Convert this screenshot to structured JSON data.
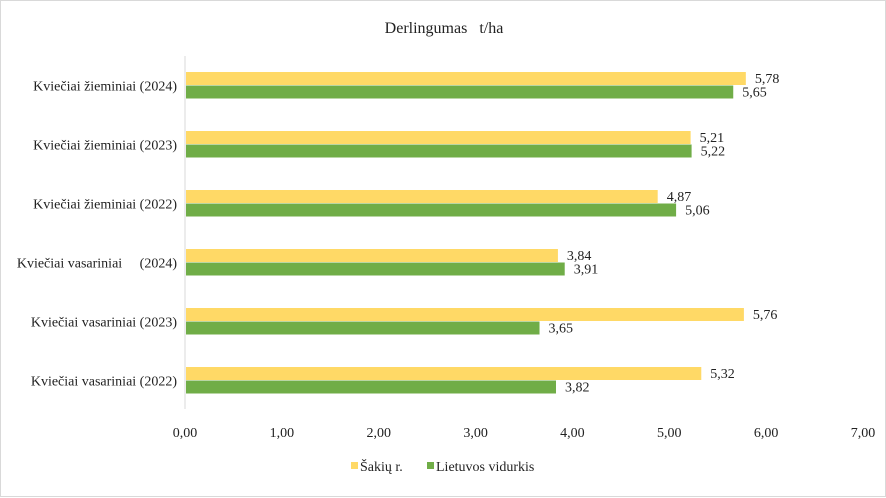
{
  "chart_data": {
    "type": "bar",
    "orientation": "horizontal",
    "title": "Derlingumas   t/ha",
    "xlabel": "",
    "ylabel": "",
    "xlim": [
      0,
      7
    ],
    "x_ticks": [
      "0,00",
      "1,00",
      "2,00",
      "3,00",
      "4,00",
      "5,00",
      "6,00",
      "7,00"
    ],
    "x_tick_values": [
      0,
      1,
      2,
      3,
      4,
      5,
      6,
      7
    ],
    "grid": false,
    "legend_position": "bottom",
    "categories": [
      "Kviečiai žieminiai (2024)",
      "Kviečiai žieminiai (2023)",
      "Kviečiai žieminiai (2022)",
      "Kviečiai vasariniai     (2024)",
      "Kviečiai vasariniai (2023)",
      "Kviečiai vasariniai (2022)"
    ],
    "series": [
      {
        "name": "Šakių r.",
        "color": "#FFD966",
        "values": [
          5.78,
          5.21,
          4.87,
          3.84,
          5.76,
          5.32
        ],
        "labels": [
          "5,78",
          "5,21",
          "4,87",
          "3,84",
          "5,76",
          "5,32"
        ]
      },
      {
        "name": "Lietuvos vidurkis",
        "color": "#70AD47",
        "values": [
          5.65,
          5.22,
          5.06,
          3.91,
          3.65,
          3.82
        ],
        "labels": [
          "5,65",
          "5,22",
          "5,06",
          "3,91",
          "3,65",
          "3,82"
        ]
      }
    ]
  }
}
